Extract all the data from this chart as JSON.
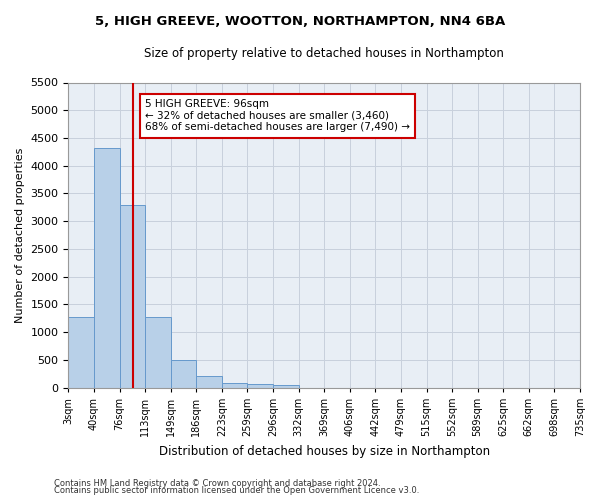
{
  "title": "5, HIGH GREEVE, WOOTTON, NORTHAMPTON, NN4 6BA",
  "subtitle": "Size of property relative to detached houses in Northampton",
  "xlabel": "Distribution of detached houses by size in Northampton",
  "ylabel": "Number of detached properties",
  "footnote1": "Contains HM Land Registry data © Crown copyright and database right 2024.",
  "footnote2": "Contains public sector information licensed under the Open Government Licence v3.0.",
  "annotation_title": "5 HIGH GREEVE: 96sqm",
  "annotation_line1": "← 32% of detached houses are smaller (3,460)",
  "annotation_line2": "68% of semi-detached houses are larger (7,490) →",
  "property_bin": 2,
  "bar_color": "#b8d0e8",
  "bar_edge_color": "#6699cc",
  "vline_color": "#cc0000",
  "annotation_box_color": "#cc0000",
  "bg_color": "#e8eef5",
  "grid_color": "#c8d0dc",
  "bin_labels": [
    "3sqm",
    "40sqm",
    "76sqm",
    "113sqm",
    "149sqm",
    "186sqm",
    "223sqm",
    "259sqm",
    "296sqm",
    "332sqm",
    "369sqm",
    "406sqm",
    "442sqm",
    "479sqm",
    "515sqm",
    "552sqm",
    "589sqm",
    "625sqm",
    "662sqm",
    "698sqm",
    "735sqm"
  ],
  "bar_heights": [
    1270,
    4320,
    3300,
    1280,
    490,
    215,
    90,
    60,
    50,
    0,
    0,
    0,
    0,
    0,
    0,
    0,
    0,
    0,
    0,
    0
  ],
  "ylim": [
    0,
    5500
  ],
  "yticks": [
    0,
    500,
    1000,
    1500,
    2000,
    2500,
    3000,
    3500,
    4000,
    4500,
    5000,
    5500
  ],
  "n_bins": 20,
  "vline_x": 2.54
}
